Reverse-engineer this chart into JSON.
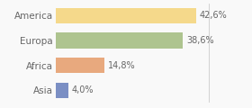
{
  "categories": [
    "America",
    "Europa",
    "Africa",
    "Asia"
  ],
  "values": [
    42.6,
    38.6,
    14.8,
    4.0
  ],
  "labels": [
    "42,6%",
    "38,6%",
    "14,8%",
    "4,0%"
  ],
  "bar_colors": [
    "#f5d98b",
    "#aec48f",
    "#e8a97e",
    "#7b8fc4"
  ],
  "background_color": "#f9f9f9",
  "xlim": [
    0,
    58
  ],
  "bar_height": 0.62,
  "label_fontsize": 7.0,
  "tick_fontsize": 7.5,
  "vline_x": 46.5,
  "vline_color": "#cccccc"
}
